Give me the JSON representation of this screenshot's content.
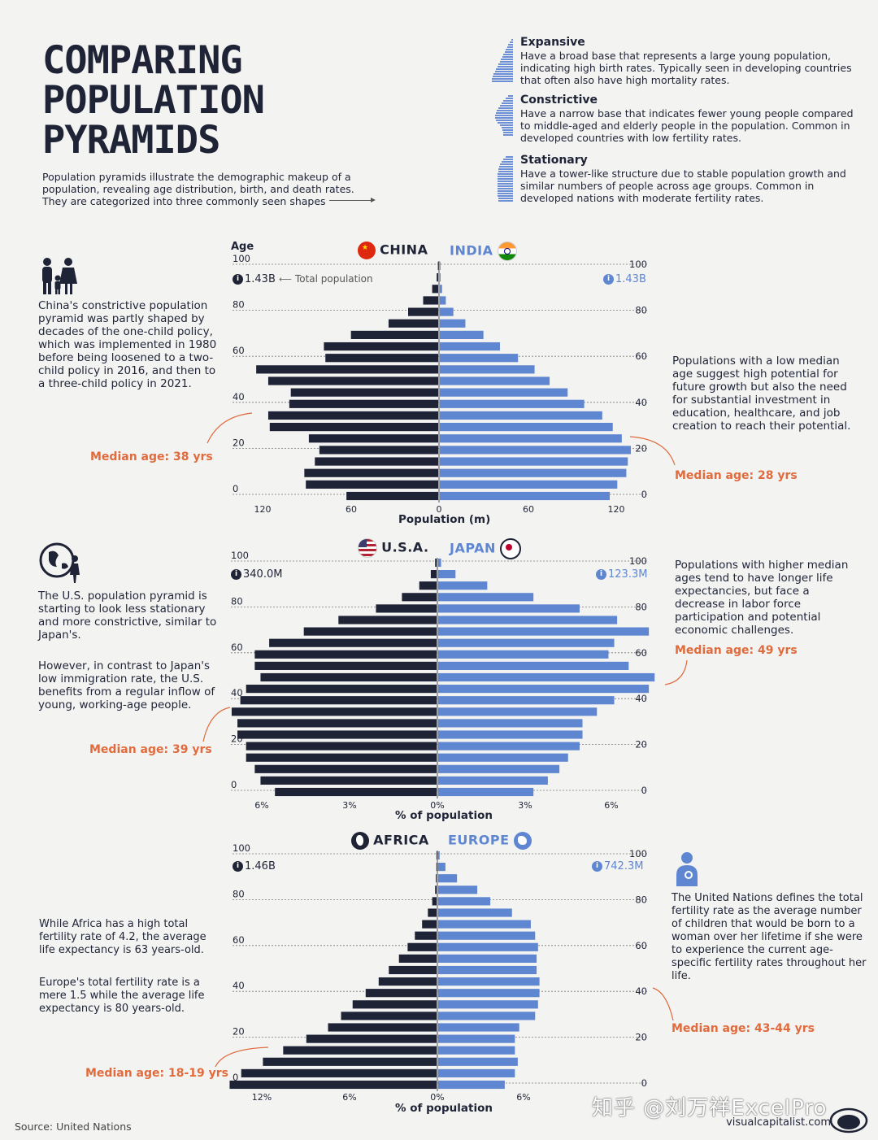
{
  "header": {
    "title_lines": [
      "COMPARING",
      "POPULATION",
      "PYRAMIDS"
    ],
    "intro": "Population pyramids illustrate the demographic makeup of a population, revealing age distribution, birth, and death rates. They are categorized into three commonly seen shapes"
  },
  "types": [
    {
      "name": "Expansive",
      "text": "Have a broad base that represents a large young population, indicating high birth rates. Typically seen in developing countries that often also have high mortality rates."
    },
    {
      "name": "Constrictive",
      "text": "Have a narrow base that indicates fewer young people compared to middle-aged and elderly people in the population. Common in developed countries with low fertility rates."
    },
    {
      "name": "Stationary",
      "text": "Have a tower-like structure due to stable population growth and similar numbers of people across age groups. Common in developed nations with moderate fertility rates."
    }
  ],
  "sections": {
    "china_india": {
      "left_text": "China's constrictive population pyramid was partly shaped by decades of the one-child policy, which was implemented in 1980 before being loosened to a two-child policy in 2016, and then to a three-child policy in 2021.",
      "left_median": "Median age: 38 yrs",
      "right_text": "Populations with a low median age suggest high potential for future growth but also the need for substantial investment in education, healthcare, and job creation to reach their potential.",
      "right_median": "Median age: 28 yrs",
      "total_label": "Total population"
    },
    "usa_japan": {
      "left_text1": "The U.S. population pyramid is starting to look less stationary and more constrictive, similar to Japan's.",
      "left_text2": "However, in contrast to Japan's low immigration rate, the U.S. benefits from a regular inflow of young, working-age people.",
      "left_median": "Median age: 39 yrs",
      "right_text": "Populations with higher median ages tend to have longer life expectancies, but face a decrease in labor force participation and potential economic challenges.",
      "right_median": "Median age: 49 yrs"
    },
    "africa_europe": {
      "left_text1": "While Africa has a high total fertility rate of 4.2, the average life expectancy is 63 years-old.",
      "left_text2": "Europe's total fertility rate is a mere 1.5 while the average life expectancy is 80 years-old.",
      "left_median": "Median age: 18-19 yrs",
      "right_text": "The United Nations defines the total fertility rate as the average number of children that would be born to a woman over her lifetime if she were to experience the current age-specific fertility rates throughout her life.",
      "right_median": "Median age: 43-44 yrs"
    }
  },
  "chart_data": [
    {
      "type": "bar",
      "orientation": "population-pyramid",
      "age_label": "Age",
      "xlabel": "Population (m)",
      "age_ticks": [
        0,
        20,
        40,
        60,
        80,
        100
      ],
      "x_ticks": [
        "120",
        "60",
        "0",
        "60",
        "120"
      ],
      "xlim": [
        0,
        120
      ],
      "age_groups": [
        "0-4",
        "5-9",
        "10-14",
        "15-19",
        "20-24",
        "25-29",
        "30-34",
        "35-39",
        "40-44",
        "45-49",
        "50-54",
        "55-59",
        "60-64",
        "65-69",
        "70-74",
        "75-79",
        "80-84",
        "85-89",
        "90-94",
        "95-99",
        "100+"
      ],
      "series": [
        {
          "name": "CHINA",
          "total": "1.43B",
          "color": "#1f2336",
          "values": [
            61,
            88,
            89,
            82,
            79,
            86,
            112,
            113,
            99,
            98,
            113,
            121,
            75,
            76,
            58,
            33,
            20,
            10,
            4,
            1,
            0.2
          ]
        },
        {
          "name": "INDIA",
          "total": "1.43B",
          "color": "#5f86d0",
          "values": [
            113,
            118,
            124,
            125,
            127,
            121,
            115,
            108,
            96,
            85,
            73,
            63,
            52,
            40,
            29,
            17,
            9,
            4,
            1.5,
            0.5,
            0.1
          ]
        }
      ]
    },
    {
      "type": "bar",
      "orientation": "population-pyramid",
      "xlabel": "% of population",
      "age_ticks": [
        0,
        20,
        40,
        60,
        80,
        100
      ],
      "x_ticks": [
        "6%",
        "3%",
        "0%",
        "3%",
        "6%"
      ],
      "xlim": [
        0,
        7
      ],
      "age_groups": [
        "0-4",
        "5-9",
        "10-14",
        "15-19",
        "20-24",
        "25-29",
        "30-34",
        "35-39",
        "40-44",
        "45-49",
        "50-54",
        "55-59",
        "60-64",
        "65-69",
        "70-74",
        "75-79",
        "80-84",
        "85-89",
        "90-94",
        "95-99",
        "100+"
      ],
      "series": [
        {
          "name": "U.S.A.",
          "total": "340.0M",
          "color": "#1f2336",
          "values": [
            5.6,
            6.1,
            6.3,
            6.6,
            6.6,
            6.9,
            6.9,
            7.1,
            6.8,
            6.6,
            6.1,
            6.3,
            6.3,
            5.8,
            4.6,
            3.4,
            2.1,
            1.2,
            0.6,
            0.2,
            0.05
          ]
        },
        {
          "name": "JAPAN",
          "total": "123.3M",
          "color": "#5f86d0",
          "values": [
            3.3,
            3.8,
            4.2,
            4.5,
            4.9,
            5.0,
            5.0,
            5.5,
            6.1,
            7.3,
            7.5,
            6.6,
            5.9,
            6.1,
            7.3,
            6.2,
            4.9,
            3.3,
            1.7,
            0.6,
            0.1
          ]
        }
      ]
    },
    {
      "type": "bar",
      "orientation": "population-pyramid",
      "xlabel": "% of population",
      "age_ticks": [
        0,
        20,
        40,
        60,
        80,
        100
      ],
      "x_ticks": [
        "12%",
        "6%",
        "0%",
        "6%"
      ],
      "xlim": [
        0,
        14.5
      ],
      "age_groups": [
        "0-4",
        "5-9",
        "10-14",
        "15-19",
        "20-24",
        "25-29",
        "30-34",
        "35-39",
        "40-44",
        "45-49",
        "50-54",
        "55-59",
        "60-64",
        "65-69",
        "70-74",
        "75-79",
        "80-84",
        "85-89",
        "90-94",
        "95-99",
        "100+"
      ],
      "series": [
        {
          "name": "AFRICA",
          "total": "1.46B",
          "color": "#1f2336",
          "values": [
            14.3,
            13.5,
            12.0,
            10.6,
            9.0,
            7.5,
            6.6,
            5.8,
            4.9,
            4.0,
            3.3,
            2.6,
            2.0,
            1.5,
            1.0,
            0.6,
            0.3,
            0.1,
            0.05,
            0.01,
            0.005
          ]
        },
        {
          "name": "EUROPE",
          "total": "742.3M",
          "color": "#5f86d0",
          "values": [
            4.6,
            5.3,
            5.5,
            5.3,
            5.3,
            5.6,
            6.7,
            6.9,
            7.0,
            7.0,
            6.8,
            6.8,
            6.9,
            6.7,
            6.4,
            5.1,
            3.6,
            2.7,
            1.3,
            0.5,
            0.1
          ]
        }
      ]
    }
  ],
  "footer": {
    "source": "Source: United Nations",
    "brand": "visualcapitalist.com",
    "watermark": "知乎 @刘万祥ExcelPro"
  },
  "colors": {
    "dark": "#1f2336",
    "blue": "#5f86d0",
    "orange": "#e06b3d",
    "bg": "#f3f3f2"
  }
}
